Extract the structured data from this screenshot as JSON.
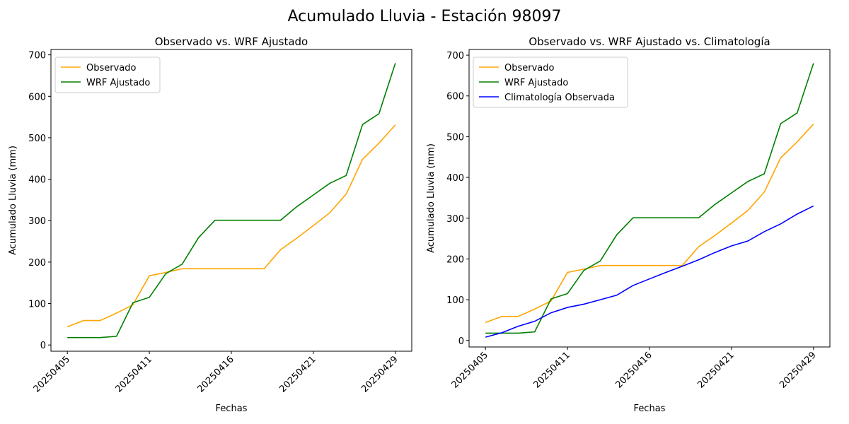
{
  "title": "Acumulado Lluvia - Estación 98097",
  "chart_data": [
    {
      "type": "line",
      "title": "Observado vs. WRF Ajustado",
      "x_label": "Fechas",
      "y_label": "Acumulado Lluvia (mm)",
      "categories": [
        "20250405",
        null,
        null,
        null,
        null,
        "20250411",
        null,
        null,
        null,
        null,
        "20250416",
        null,
        null,
        null,
        null,
        "20250421",
        null,
        null,
        null,
        null,
        "20250429"
      ],
      "xlim": [
        -1,
        21
      ],
      "ylim": [
        -15,
        713
      ],
      "yticks": [
        0,
        100,
        200,
        300,
        400,
        500,
        600,
        700
      ],
      "legend": "upper left",
      "series": [
        {
          "name": "Observado",
          "color": "orange",
          "values": [
            44,
            59,
            59,
            77,
            97,
            167,
            175,
            184,
            184,
            184,
            184,
            184,
            184,
            230,
            258,
            288,
            319,
            364,
            448,
            487,
            531
          ]
        },
        {
          "name": "WRF Ajustado",
          "color": "green",
          "values": [
            18,
            18,
            18,
            21,
            102,
            115,
            172,
            195,
            259,
            301,
            301,
            301,
            301,
            301,
            334,
            362,
            390,
            409,
            532,
            558,
            680
          ]
        }
      ]
    },
    {
      "type": "line",
      "title": "Observado vs. WRF Ajustado vs. Climatología",
      "x_label": "Fechas",
      "y_label": "Acumulado Lluvia (mm)",
      "categories": [
        "20250405",
        null,
        null,
        null,
        null,
        "20250411",
        null,
        null,
        null,
        null,
        "20250416",
        null,
        null,
        null,
        null,
        "20250421",
        null,
        null,
        null,
        null,
        "20250429"
      ],
      "xlim": [
        -1,
        21
      ],
      "ylim": [
        -16,
        714
      ],
      "yticks": [
        0,
        100,
        200,
        300,
        400,
        500,
        600,
        700
      ],
      "legend": "upper left",
      "series": [
        {
          "name": "Observado",
          "color": "orange",
          "values": [
            44,
            59,
            59,
            77,
            97,
            167,
            175,
            184,
            184,
            184,
            184,
            184,
            184,
            230,
            258,
            288,
            319,
            364,
            448,
            487,
            531
          ]
        },
        {
          "name": "WRF Ajustado",
          "color": "green",
          "values": [
            18,
            18,
            18,
            21,
            102,
            115,
            172,
            195,
            259,
            301,
            301,
            301,
            301,
            301,
            334,
            362,
            390,
            409,
            532,
            558,
            680
          ]
        },
        {
          "name": "Climatología Observada",
          "color": "blue",
          "values": [
            8,
            19,
            35,
            47,
            68,
            81,
            89,
            100,
            111,
            135,
            151,
            167,
            182,
            198,
            216,
            232,
            244,
            267,
            286,
            310,
            330
          ]
        }
      ]
    }
  ]
}
